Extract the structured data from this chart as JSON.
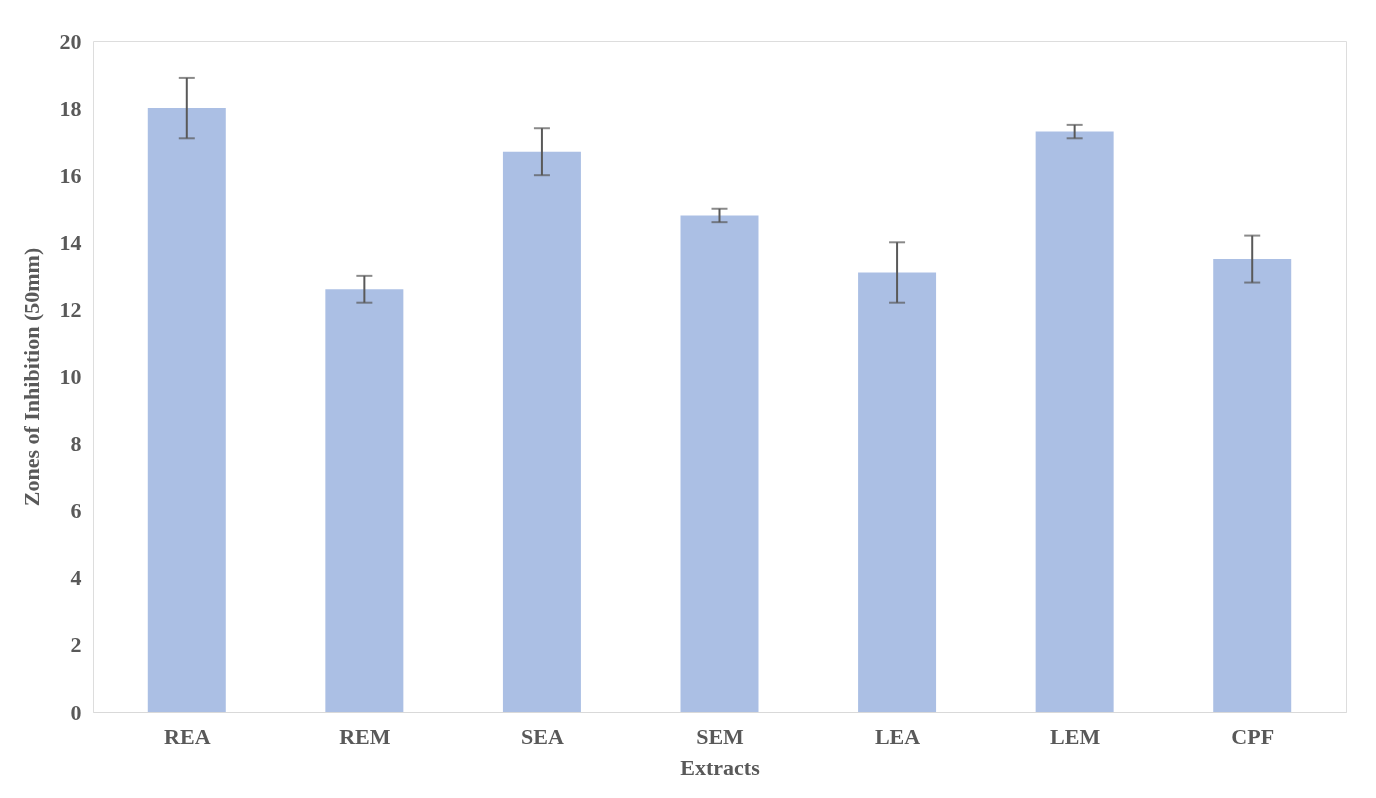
{
  "chart_data": {
    "type": "bar",
    "xlabel": "Extracts",
    "ylabel": "Zones of Inhibition (50mm)",
    "categories": [
      "REA",
      "REM",
      "SEA",
      "SEM",
      "LEA",
      "LEM",
      "CPF"
    ],
    "values": [
      18.0,
      12.6,
      16.7,
      14.8,
      13.1,
      17.3,
      13.5
    ],
    "errors": [
      0.9,
      0.4,
      0.7,
      0.2,
      0.9,
      0.2,
      0.7
    ],
    "color": "#4472c4",
    "ylim": [
      0,
      20
    ],
    "yticks": [
      0,
      2,
      4,
      6,
      8,
      10,
      12,
      14,
      16,
      18,
      20
    ],
    "grid": false
  }
}
